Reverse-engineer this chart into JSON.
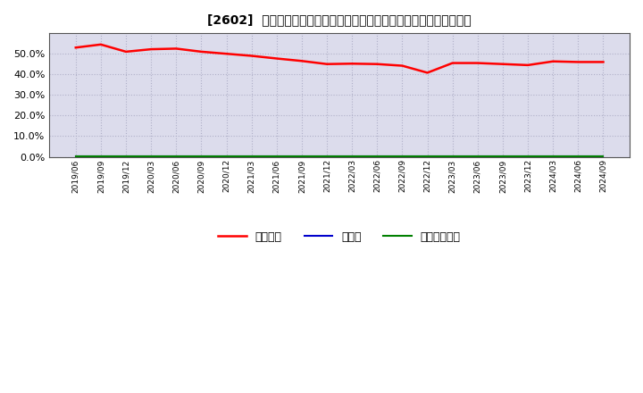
{
  "title": "[2602]  自己資本、のれん、繰延税金資産の総資産に対する比率の推移",
  "x_labels": [
    "2019/06",
    "2019/09",
    "2019/12",
    "2020/03",
    "2020/06",
    "2020/09",
    "2020/12",
    "2021/03",
    "2021/06",
    "2021/09",
    "2021/12",
    "2022/03",
    "2022/06",
    "2022/09",
    "2022/12",
    "2023/03",
    "2023/06",
    "2023/09",
    "2023/12",
    "2024/03",
    "2024/06",
    "2024/09"
  ],
  "equity_ratio": [
    0.53,
    0.545,
    0.51,
    0.522,
    0.525,
    0.51,
    0.5,
    0.49,
    0.477,
    0.465,
    0.45,
    0.452,
    0.45,
    0.442,
    0.408,
    0.455,
    0.455,
    0.45,
    0.445,
    0.463,
    0.46,
    0.46
  ],
  "goodwill_ratio": [
    0.003,
    0.003,
    0.003,
    0.003,
    0.003,
    0.003,
    0.003,
    0.003,
    0.003,
    0.003,
    0.003,
    0.003,
    0.003,
    0.003,
    0.003,
    0.003,
    0.003,
    0.003,
    0.003,
    0.003,
    0.003,
    0.003
  ],
  "deferred_tax_ratio": [
    0.003,
    0.003,
    0.003,
    0.003,
    0.003,
    0.003,
    0.003,
    0.003,
    0.003,
    0.003,
    0.003,
    0.003,
    0.003,
    0.003,
    0.003,
    0.003,
    0.003,
    0.003,
    0.003,
    0.003,
    0.003,
    0.003
  ],
  "equity_color": "#ff0000",
  "goodwill_color": "#0000cc",
  "deferred_tax_color": "#008000",
  "bg_color": "#ffffff",
  "plot_bg_color": "#dcdcec",
  "grid_color": "#b0b0c8",
  "ylim": [
    0.0,
    0.6
  ],
  "yticks": [
    0.0,
    0.1,
    0.2,
    0.3,
    0.4,
    0.5
  ],
  "legend_labels": [
    "自己資本",
    "のれん",
    "繰延税金資産"
  ]
}
